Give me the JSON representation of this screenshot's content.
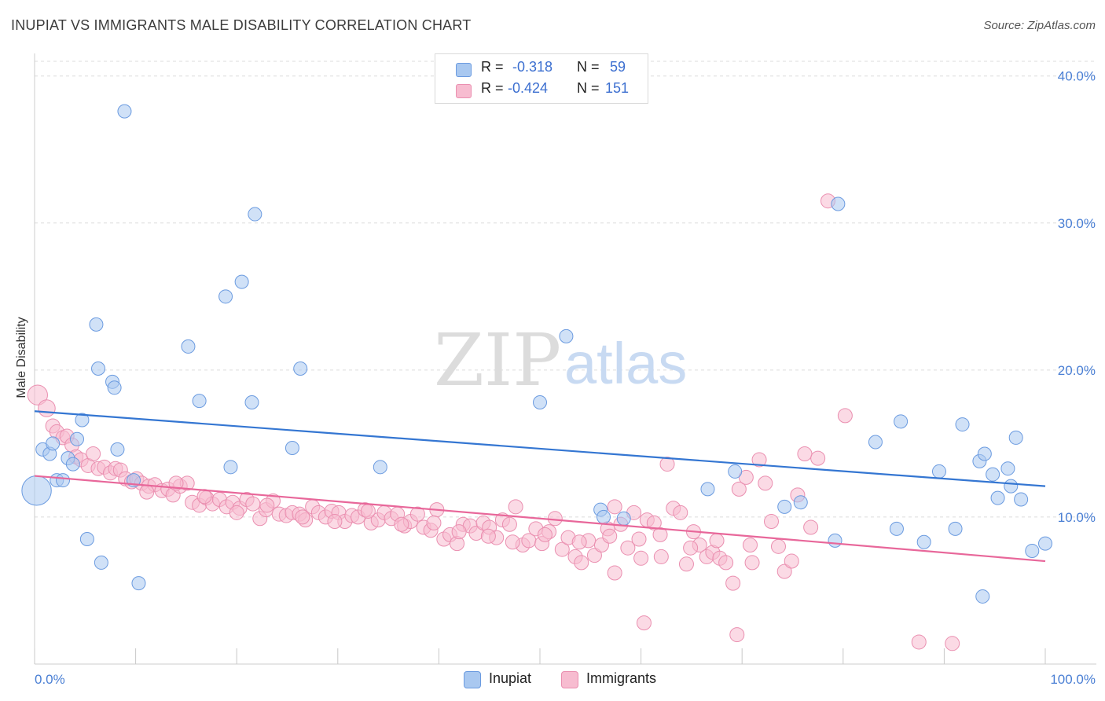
{
  "header": {
    "title": "INUPIAT VS IMMIGRANTS MALE DISABILITY CORRELATION CHART",
    "source": "Source: ZipAtlas.com"
  },
  "watermark": {
    "zip": "ZIP",
    "atlas": "atlas"
  },
  "stats": {
    "r_label": "R =",
    "n_label": "N =",
    "inupiat": {
      "r": "-0.318",
      "n": "59"
    },
    "immigrants": {
      "r": "-0.424",
      "n": "151"
    }
  },
  "legend": {
    "inupiat": "Inupiat",
    "immigrants": "Immigrants"
  },
  "chart_data": {
    "type": "scatter",
    "title": "INUPIAT VS IMMIGRANTS MALE DISABILITY CORRELATION CHART",
    "xlabel": "",
    "ylabel": "Male Disability",
    "xlim": [
      0,
      100
    ],
    "ylim": [
      0,
      41
    ],
    "x_tick_labels": {
      "min": "0.0%",
      "max": "100.0%"
    },
    "y_ticks": [
      10,
      20,
      30,
      40
    ],
    "y_tick_labels": [
      "10.0%",
      "20.0%",
      "30.0%",
      "40.0%"
    ],
    "grid": true,
    "legend_position": "bottom-center",
    "colors": {
      "inupiat_fill": "#a9c8f0",
      "inupiat_stroke": "#6b9be0",
      "inupiat_line": "#3476d2",
      "immigrants_fill": "#f7bcd0",
      "immigrants_stroke": "#ea8fb0",
      "immigrants_line": "#e8679a",
      "grid": "#dcdcdc",
      "axis_text": "#4a7fd4"
    },
    "series": [
      {
        "name": "Inupiat",
        "trend": {
          "x": [
            0,
            100
          ],
          "y": [
            17.2,
            12.1
          ]
        },
        "points": [
          [
            0.2,
            11.8,
            2.2
          ],
          [
            0.8,
            14.6,
            1
          ],
          [
            1.5,
            14.3,
            1
          ],
          [
            1.8,
            15.0,
            1
          ],
          [
            2.2,
            12.5,
            1
          ],
          [
            2.8,
            12.5,
            1
          ],
          [
            3.3,
            14.0,
            1
          ],
          [
            3.8,
            13.6,
            1
          ],
          [
            4.2,
            15.3,
            1
          ],
          [
            4.7,
            16.6,
            1
          ],
          [
            5.2,
            8.5,
            1
          ],
          [
            6.1,
            23.1,
            1
          ],
          [
            6.3,
            20.1,
            1
          ],
          [
            6.6,
            6.9,
            1
          ],
          [
            7.7,
            19.2,
            1
          ],
          [
            7.9,
            18.8,
            1
          ],
          [
            8.2,
            14.6,
            1
          ],
          [
            8.9,
            37.6,
            1
          ],
          [
            9.8,
            12.5,
            1
          ],
          [
            10.3,
            5.5,
            1
          ],
          [
            15.2,
            21.6,
            1
          ],
          [
            16.3,
            17.9,
            1
          ],
          [
            18.9,
            25.0,
            1
          ],
          [
            19.4,
            13.4,
            1
          ],
          [
            20.5,
            26.0,
            1
          ],
          [
            21.5,
            17.8,
            1
          ],
          [
            21.8,
            30.6,
            1
          ],
          [
            25.5,
            14.7,
            1
          ],
          [
            26.3,
            20.1,
            1
          ],
          [
            34.2,
            13.4,
            1
          ],
          [
            50.0,
            17.8,
            1
          ],
          [
            52.6,
            22.3,
            1
          ],
          [
            56.0,
            10.5,
            1
          ],
          [
            56.3,
            10.0,
            1
          ],
          [
            58.3,
            9.9,
            1
          ],
          [
            66.6,
            11.9,
            1
          ],
          [
            69.3,
            13.1,
            1
          ],
          [
            74.2,
            10.7,
            1
          ],
          [
            75.8,
            11.0,
            1
          ],
          [
            79.2,
            8.4,
            1
          ],
          [
            79.5,
            31.3,
            1
          ],
          [
            83.2,
            15.1,
            1
          ],
          [
            85.3,
            9.2,
            1
          ],
          [
            85.7,
            16.5,
            1
          ],
          [
            88.0,
            8.3,
            1
          ],
          [
            89.5,
            13.1,
            1
          ],
          [
            91.1,
            9.2,
            1
          ],
          [
            91.8,
            16.3,
            1
          ],
          [
            93.5,
            13.8,
            1
          ],
          [
            93.8,
            4.6,
            1
          ],
          [
            94.0,
            14.3,
            1
          ],
          [
            94.8,
            12.9,
            1
          ],
          [
            95.3,
            11.3,
            1
          ],
          [
            96.3,
            13.3,
            1
          ],
          [
            96.6,
            12.1,
            1
          ],
          [
            97.1,
            15.4,
            1
          ],
          [
            97.6,
            11.2,
            1
          ],
          [
            98.7,
            7.7,
            1
          ],
          [
            100.0,
            8.2,
            1
          ]
        ]
      },
      {
        "name": "Immigrants",
        "trend": {
          "x": [
            0,
            100
          ],
          "y": [
            12.8,
            7.0
          ]
        },
        "points": [
          [
            0.3,
            18.3,
            1.4
          ],
          [
            1.2,
            17.4,
            1.2
          ],
          [
            1.8,
            16.2,
            1
          ],
          [
            2.2,
            15.8,
            1
          ],
          [
            2.8,
            15.4,
            1
          ],
          [
            3.2,
            15.5,
            1
          ],
          [
            3.7,
            14.9,
            1
          ],
          [
            4.1,
            14.1,
            1
          ],
          [
            4.6,
            13.9,
            1
          ],
          [
            5.3,
            13.5,
            1
          ],
          [
            5.8,
            14.3,
            1
          ],
          [
            6.3,
            13.3,
            1
          ],
          [
            6.9,
            13.4,
            1
          ],
          [
            7.5,
            13.0,
            1
          ],
          [
            8.0,
            13.3,
            1
          ],
          [
            8.5,
            13.2,
            1
          ],
          [
            9.0,
            12.6,
            1
          ],
          [
            9.6,
            12.4,
            1
          ],
          [
            10.1,
            12.6,
            1
          ],
          [
            10.6,
            12.3,
            1
          ],
          [
            11.3,
            12.1,
            1
          ],
          [
            11.9,
            12.2,
            1
          ],
          [
            12.6,
            11.8,
            1
          ],
          [
            13.2,
            11.9,
            1
          ],
          [
            13.7,
            11.5,
            1
          ],
          [
            14.4,
            12.1,
            1
          ],
          [
            15.1,
            12.3,
            1
          ],
          [
            15.6,
            11.0,
            1
          ],
          [
            16.3,
            10.8,
            1
          ],
          [
            17.0,
            11.3,
            1
          ],
          [
            17.6,
            10.9,
            1
          ],
          [
            18.3,
            11.2,
            1
          ],
          [
            19.0,
            10.7,
            1
          ],
          [
            19.6,
            11.0,
            1
          ],
          [
            20.3,
            10.6,
            1
          ],
          [
            21.0,
            11.2,
            1
          ],
          [
            21.6,
            10.9,
            1
          ],
          [
            22.3,
            9.9,
            1
          ],
          [
            22.9,
            10.5,
            1
          ],
          [
            23.6,
            11.1,
            1
          ],
          [
            24.2,
            10.2,
            1
          ],
          [
            24.9,
            10.1,
            1
          ],
          [
            25.5,
            10.3,
            1
          ],
          [
            26.2,
            10.2,
            1
          ],
          [
            26.8,
            9.8,
            1
          ],
          [
            27.5,
            10.7,
            1
          ],
          [
            28.1,
            10.3,
            1
          ],
          [
            28.8,
            10.0,
            1
          ],
          [
            29.4,
            10.4,
            1
          ],
          [
            30.1,
            10.3,
            1
          ],
          [
            30.7,
            9.7,
            1
          ],
          [
            31.4,
            10.1,
            1
          ],
          [
            32.0,
            10.0,
            1
          ],
          [
            32.7,
            10.5,
            1
          ],
          [
            33.3,
            9.6,
            1
          ],
          [
            34.0,
            9.8,
            1
          ],
          [
            34.6,
            10.3,
            1
          ],
          [
            35.3,
            9.9,
            1
          ],
          [
            35.9,
            10.2,
            1
          ],
          [
            36.6,
            9.4,
            1
          ],
          [
            37.2,
            9.7,
            1
          ],
          [
            37.9,
            10.2,
            1
          ],
          [
            38.5,
            9.3,
            1
          ],
          [
            39.2,
            9.1,
            1
          ],
          [
            39.8,
            10.5,
            1
          ],
          [
            40.5,
            8.5,
            1
          ],
          [
            41.1,
            8.8,
            1
          ],
          [
            41.8,
            8.2,
            1
          ],
          [
            42.4,
            9.5,
            1
          ],
          [
            43.1,
            9.4,
            1
          ],
          [
            43.7,
            8.9,
            1
          ],
          [
            44.4,
            9.6,
            1
          ],
          [
            45.0,
            9.3,
            1
          ],
          [
            45.7,
            8.6,
            1
          ],
          [
            46.3,
            9.8,
            1
          ],
          [
            47.0,
            9.5,
            1
          ],
          [
            47.6,
            10.7,
            1
          ],
          [
            48.3,
            8.1,
            1
          ],
          [
            48.9,
            8.4,
            1
          ],
          [
            49.6,
            9.2,
            1
          ],
          [
            50.2,
            8.2,
            1
          ],
          [
            50.9,
            9.0,
            1
          ],
          [
            51.5,
            9.9,
            1
          ],
          [
            52.2,
            7.8,
            1
          ],
          [
            52.8,
            8.6,
            1
          ],
          [
            53.5,
            7.3,
            1
          ],
          [
            54.1,
            6.9,
            1
          ],
          [
            54.8,
            8.4,
            1
          ],
          [
            55.4,
            7.4,
            1
          ],
          [
            56.1,
            8.1,
            1
          ],
          [
            56.7,
            9.2,
            1
          ],
          [
            57.4,
            10.7,
            1
          ],
          [
            58.0,
            9.5,
            1
          ],
          [
            58.7,
            7.9,
            1
          ],
          [
            59.3,
            10.3,
            1
          ],
          [
            60.0,
            7.2,
            1
          ],
          [
            60.6,
            9.8,
            1
          ],
          [
            61.3,
            9.6,
            1
          ],
          [
            61.9,
            8.8,
            1
          ],
          [
            62.6,
            13.6,
            1
          ],
          [
            63.2,
            10.6,
            1
          ],
          [
            63.9,
            10.3,
            1
          ],
          [
            64.5,
            6.8,
            1
          ],
          [
            65.2,
            9.0,
            1
          ],
          [
            65.8,
            8.1,
            1
          ],
          [
            66.5,
            7.3,
            1
          ],
          [
            67.1,
            7.6,
            1
          ],
          [
            67.8,
            7.2,
            1
          ],
          [
            68.4,
            6.9,
            1
          ],
          [
            69.1,
            5.5,
            1
          ],
          [
            69.7,
            11.9,
            1
          ],
          [
            70.4,
            12.7,
            1
          ],
          [
            71.0,
            6.9,
            1
          ],
          [
            71.7,
            13.9,
            1
          ],
          [
            72.3,
            12.3,
            1
          ],
          [
            72.9,
            9.7,
            1
          ],
          [
            73.6,
            8.0,
            1
          ],
          [
            74.2,
            6.3,
            1
          ],
          [
            74.9,
            7.0,
            1
          ],
          [
            75.5,
            11.5,
            1
          ],
          [
            76.2,
            14.3,
            1
          ],
          [
            76.8,
            9.3,
            1
          ],
          [
            77.5,
            14.0,
            1
          ],
          [
            78.5,
            31.5,
            1
          ],
          [
            80.2,
            16.9,
            1
          ],
          [
            57.4,
            6.2,
            1
          ],
          [
            60.3,
            2.8,
            1
          ],
          [
            69.5,
            2.0,
            1
          ],
          [
            87.5,
            1.5,
            1
          ],
          [
            90.8,
            1.4,
            1
          ],
          [
            11.1,
            11.7,
            1
          ],
          [
            14.0,
            12.3,
            1
          ],
          [
            16.8,
            11.4,
            1
          ],
          [
            20.0,
            10.3,
            1
          ],
          [
            23.0,
            10.8,
            1
          ],
          [
            26.5,
            10.0,
            1
          ],
          [
            29.7,
            9.7,
            1
          ],
          [
            33.0,
            10.4,
            1
          ],
          [
            36.3,
            9.5,
            1
          ],
          [
            39.5,
            9.6,
            1
          ],
          [
            42.0,
            9.0,
            1
          ],
          [
            44.9,
            8.7,
            1
          ],
          [
            47.3,
            8.3,
            1
          ],
          [
            50.5,
            8.8,
            1
          ],
          [
            53.9,
            8.3,
            1
          ],
          [
            56.9,
            8.7,
            1
          ],
          [
            59.8,
            8.5,
            1
          ],
          [
            62.0,
            7.3,
            1
          ],
          [
            64.9,
            7.9,
            1
          ],
          [
            67.5,
            8.4,
            1
          ],
          [
            70.8,
            8.1,
            1
          ]
        ]
      }
    ]
  }
}
